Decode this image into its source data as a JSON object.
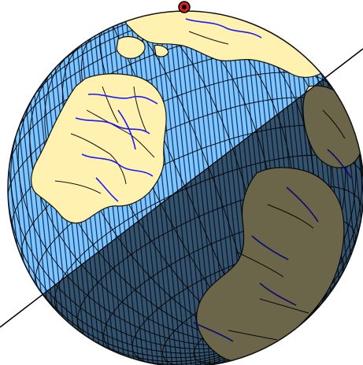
{
  "map": {
    "projection": "orthographic",
    "style": {
      "ocean": "#7ec8ff",
      "ocean_hatch": "#0a2a66",
      "land": "#fff2b0",
      "land_border": "#111111",
      "rivers": "#1a1aff",
      "graticule": "#000000",
      "night_overlay": "#000000",
      "night_opacity": 0.58,
      "terminator_line": "#000000",
      "marker_fill": "#d62020",
      "marker_ring": "#000000"
    },
    "layers": [
      "ocean-hatching",
      "graticule",
      "continents",
      "country-borders",
      "rivers",
      "night-shadow",
      "terminator",
      "pole-marker"
    ],
    "marker": {
      "icon": "location-marker-icon"
    }
  }
}
